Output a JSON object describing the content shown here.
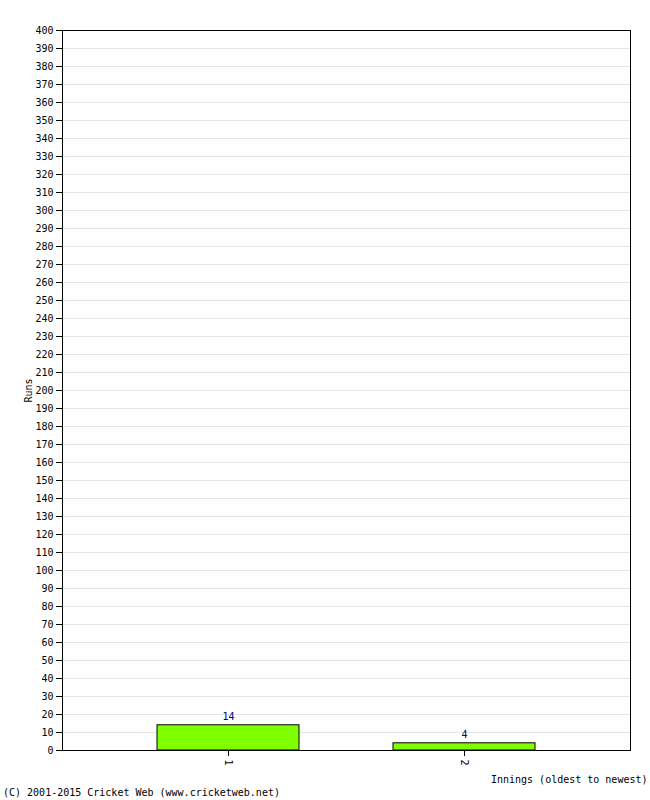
{
  "chart_data": {
    "type": "bar",
    "categories": [
      "1",
      "2"
    ],
    "values": [
      14,
      4
    ],
    "color": "#80ff00",
    "xlabel": "Innings (oldest to newest)",
    "ylabel": "Runs",
    "caption": "(C) 2001-2015 Cricket Web (www.cricketweb.net)",
    "ylim": [
      0,
      400
    ],
    "yticks": [
      0,
      10,
      20,
      30,
      40,
      50,
      60,
      70,
      80,
      90,
      100,
      110,
      120,
      130,
      140,
      150,
      160,
      170,
      180,
      190,
      200,
      210,
      220,
      230,
      240,
      250,
      260,
      270,
      280,
      290,
      300,
      310,
      320,
      330,
      340,
      350,
      360,
      370,
      380,
      390,
      400
    ],
    "grid": true,
    "data_labels": true
  }
}
